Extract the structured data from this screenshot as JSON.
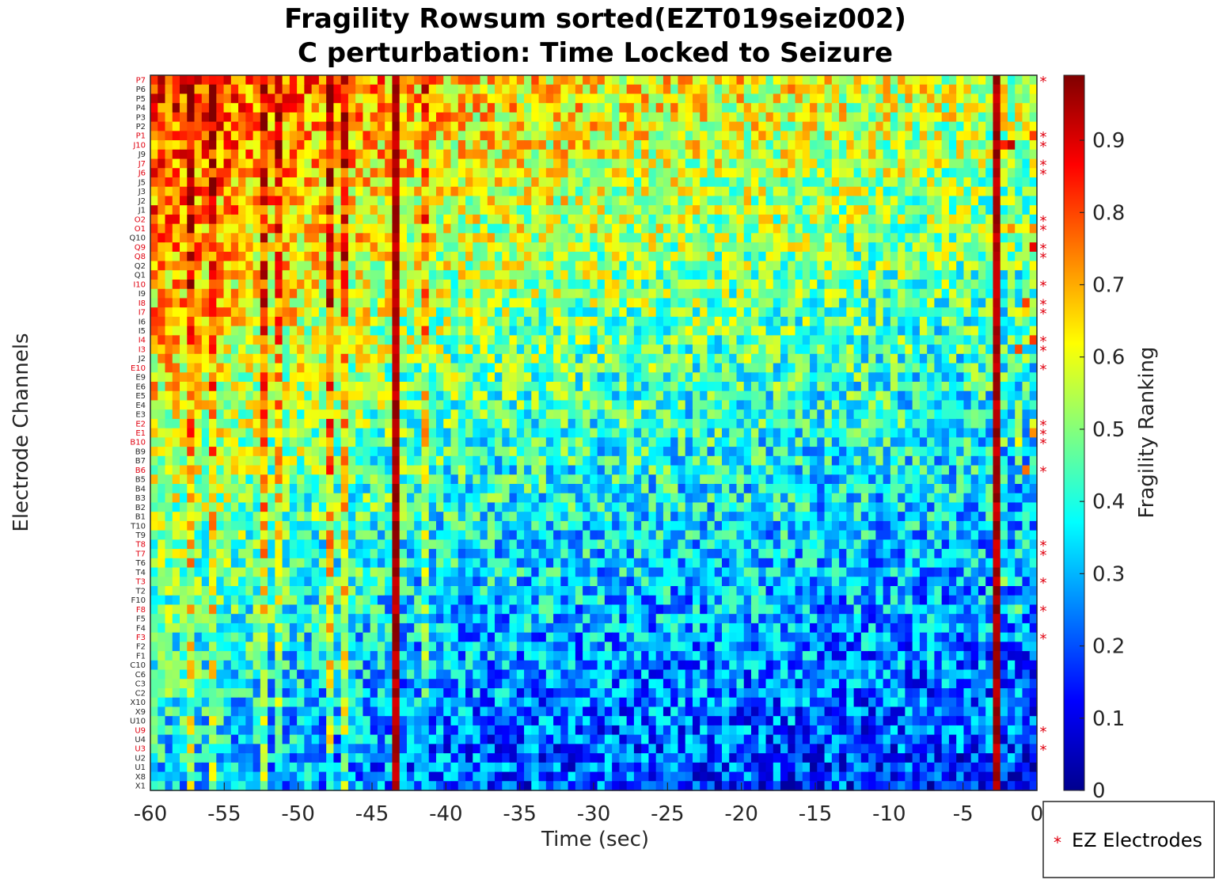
{
  "chart_data": {
    "type": "heatmap",
    "title": [
      "Fragility Rowsum sorted(EZT019seiz002)",
      "C perturbation:  Time Locked to Seizure"
    ],
    "xlabel": "Time (sec)",
    "ylabel": "Electrode Channels",
    "colorbar_label": "Fragility Ranking",
    "colormap": "jet",
    "clim": [
      0,
      0.99
    ],
    "xlim": [
      -60,
      0
    ],
    "x_ticks": [
      "-60",
      "-55",
      "-50",
      "-45",
      "-40",
      "-35",
      "-30",
      "-25",
      "-20",
      "-15",
      "-10",
      "-5",
      "0"
    ],
    "colorbar_ticks": [
      "0",
      "0.1",
      "0.2",
      "0.3",
      "0.4",
      "0.5",
      "0.6",
      "0.7",
      "0.8",
      "0.9"
    ],
    "channels": [
      "P7",
      "P6",
      "P5",
      "P4",
      "P3",
      "P2",
      "P1",
      "J10",
      "J9",
      "J7",
      "J6",
      "J5",
      "J3",
      "J2",
      "J1",
      "O2",
      "O1",
      "Q10",
      "Q9",
      "Q8",
      "Q2",
      "Q1",
      "I10",
      "I9",
      "I8",
      "I7",
      "I6",
      "I5",
      "I4",
      "I3",
      "J2",
      "E10",
      "E9",
      "E6",
      "E5",
      "E4",
      "E3",
      "E2",
      "E1",
      "B10",
      "B9",
      "B7",
      "B6",
      "B5",
      "B4",
      "B3",
      "B2",
      "B1",
      "T10",
      "T9",
      "T8",
      "T7",
      "T6",
      "T4",
      "T3",
      "T2",
      "F10",
      "F8",
      "F5",
      "F4",
      "F3",
      "F2",
      "F1",
      "C10",
      "C6",
      "C3",
      "C2",
      "X10",
      "X9",
      "U10",
      "U9",
      "U4",
      "U3",
      "U2",
      "U1",
      "X8",
      "X1"
    ],
    "ez_channels": [
      "P7",
      "P1",
      "J10",
      "J7",
      "J6",
      "O2",
      "O1",
      "Q9",
      "Q8",
      "I10",
      "I8",
      "I7",
      "I4",
      "I3",
      "E10",
      "E2",
      "E1",
      "B10",
      "B6",
      "T8",
      "T7",
      "T3",
      "F8",
      "F3",
      "U9",
      "U3"
    ],
    "ez_marker": "*",
    "ez_color": "#e0000f",
    "normal_label_color": "#262626",
    "n_time_windows": 121,
    "time_step_sec": 0.5,
    "high_columns_sec": [
      -43.5,
      -2.5
    ],
    "legend": {
      "label": "EZ Electrodes",
      "marker": "*"
    }
  }
}
